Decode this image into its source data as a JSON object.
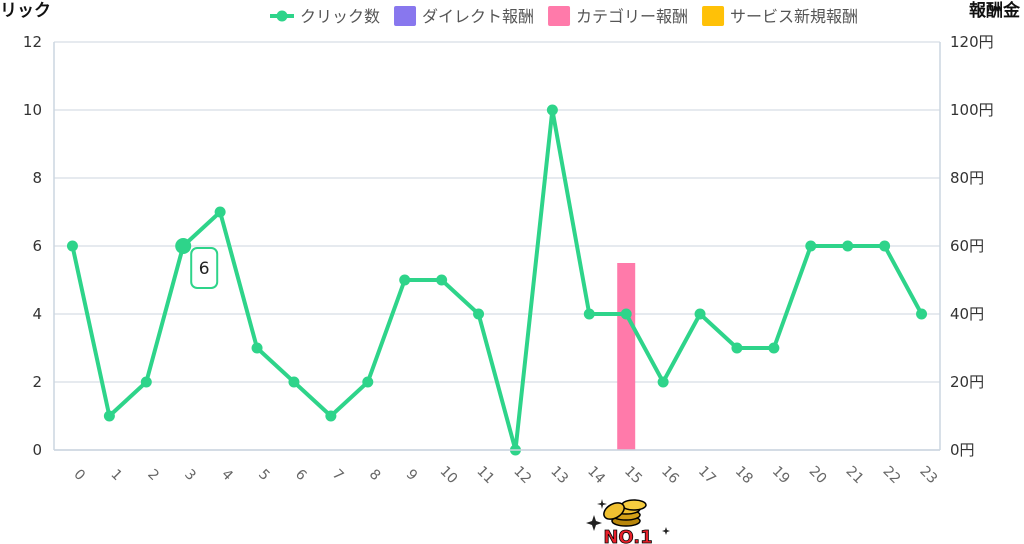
{
  "chart_data": {
    "type": "line",
    "y_left_title": "リック",
    "y_right_title": "報酬金",
    "categories": [
      "0",
      "1",
      "2",
      "3",
      "4",
      "5",
      "6",
      "7",
      "8",
      "9",
      "10",
      "11",
      "12",
      "13",
      "14",
      "15",
      "16",
      "17",
      "18",
      "19",
      "20",
      "21",
      "22",
      "23"
    ],
    "y_left_ticks": [
      "0",
      "2",
      "4",
      "6",
      "8",
      "10",
      "12"
    ],
    "y_right_ticks": [
      "0円",
      "20円",
      "40円",
      "60円",
      "80円",
      "100円",
      "120円"
    ],
    "ylim_left": [
      0,
      12
    ],
    "ylim_right": [
      0,
      120
    ],
    "grid": true,
    "legend_position": "top",
    "series": [
      {
        "name": "クリック数",
        "type": "line",
        "color": "#2ed48a",
        "axis": "left",
        "values": [
          6,
          1,
          2,
          6,
          7,
          3,
          2,
          1,
          2,
          5,
          5,
          4,
          0,
          10,
          4,
          4,
          2,
          4,
          3,
          3,
          6,
          6,
          6,
          4
        ]
      },
      {
        "name": "ダイレクト報酬",
        "type": "bar",
        "color": "#8877ee",
        "axis": "right",
        "values": [
          0,
          0,
          0,
          0,
          0,
          0,
          0,
          0,
          0,
          0,
          0,
          0,
          0,
          0,
          0,
          0,
          0,
          0,
          0,
          0,
          0,
          0,
          0,
          0
        ]
      },
      {
        "name": "カテゴリー報酬",
        "type": "bar",
        "color": "#ff7aaa",
        "axis": "right",
        "values": [
          0,
          0,
          0,
          0,
          0,
          0,
          0,
          0,
          0,
          0,
          0,
          0,
          0,
          0,
          0,
          55,
          0,
          0,
          0,
          0,
          0,
          0,
          0,
          0
        ]
      },
      {
        "name": "サービス新規報酬",
        "type": "bar",
        "color": "#ffc107",
        "axis": "right",
        "values": [
          0,
          0,
          0,
          0,
          0,
          0,
          0,
          0,
          0,
          0,
          0,
          0,
          0,
          0,
          0,
          0,
          0,
          0,
          0,
          0,
          0,
          0,
          0,
          0
        ]
      }
    ],
    "tooltip": {
      "category": "3",
      "value": "6"
    }
  },
  "badge": {
    "text": "NO.1",
    "icon": "gold-coins-icon"
  }
}
